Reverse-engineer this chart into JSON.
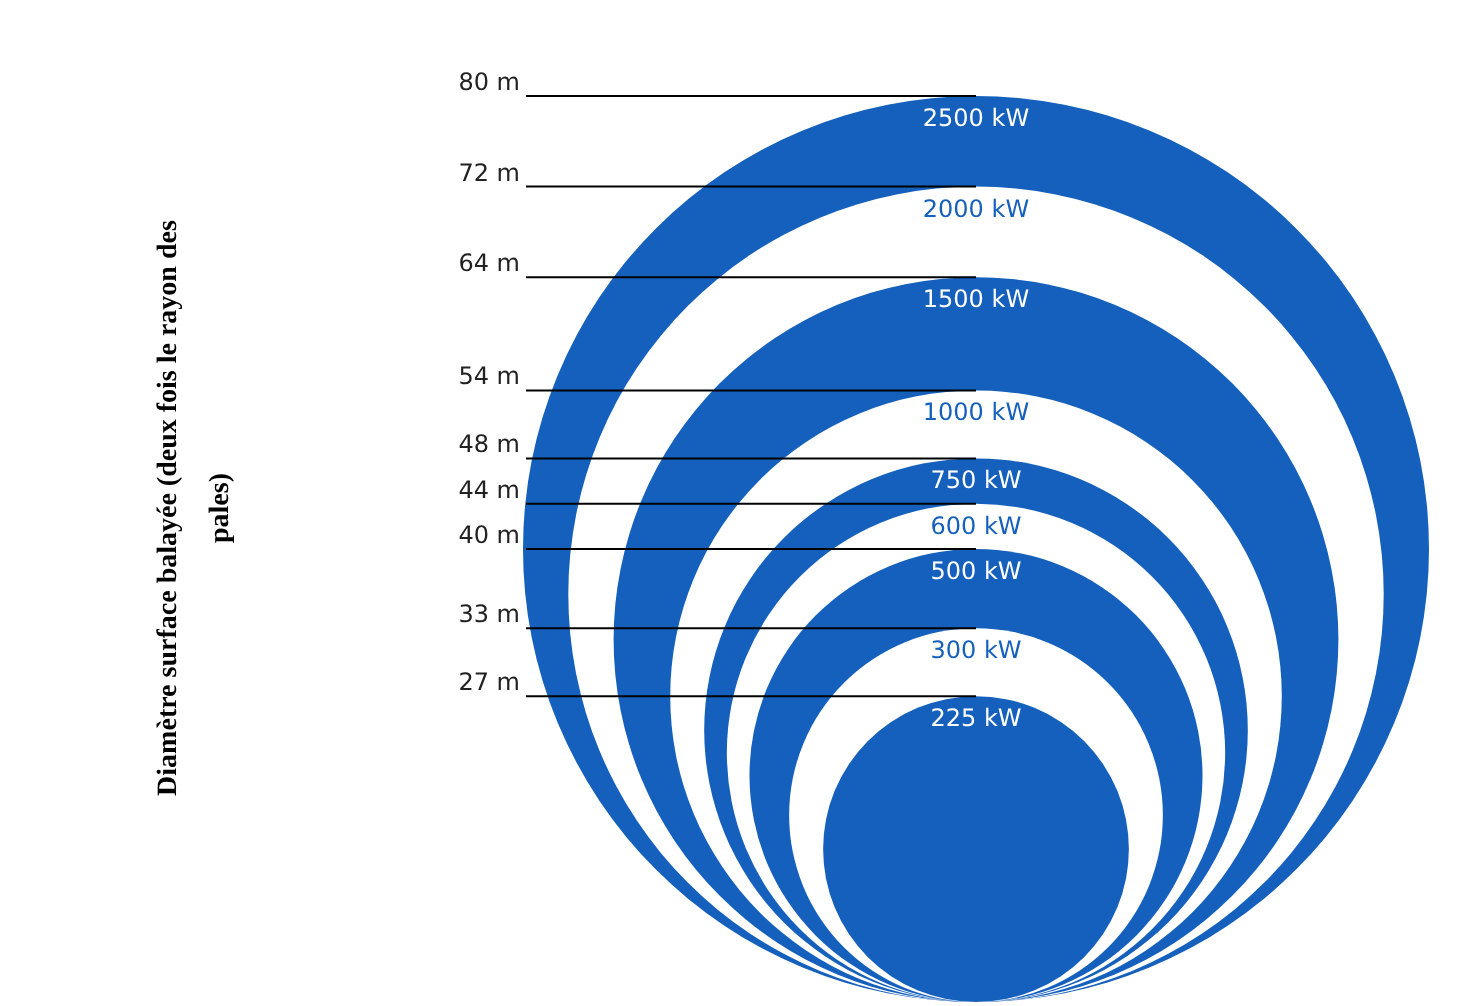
{
  "chart_data": {
    "type": "other",
    "ylabel": "Diamètre surface balayée (deux fois le rayon des pales)",
    "categories": [
      "2500 kW",
      "2000 kW",
      "1500 kW",
      "1000 kW",
      "750 kW",
      "600 kW",
      "500 kW",
      "300 kW",
      "225 kW"
    ],
    "values": [
      80,
      72,
      64,
      54,
      48,
      44,
      40,
      33,
      27
    ],
    "value_labels": [
      "80 m",
      "72 m",
      "64 m",
      "54 m",
      "48 m",
      "44 m",
      "40 m",
      "33 m",
      "27 m"
    ],
    "colors": [
      "#1560bd",
      "#ffffff",
      "#1560bd",
      "#ffffff",
      "#1560bd",
      "#ffffff",
      "#1560bd",
      "#ffffff",
      "#1560bd"
    ]
  }
}
